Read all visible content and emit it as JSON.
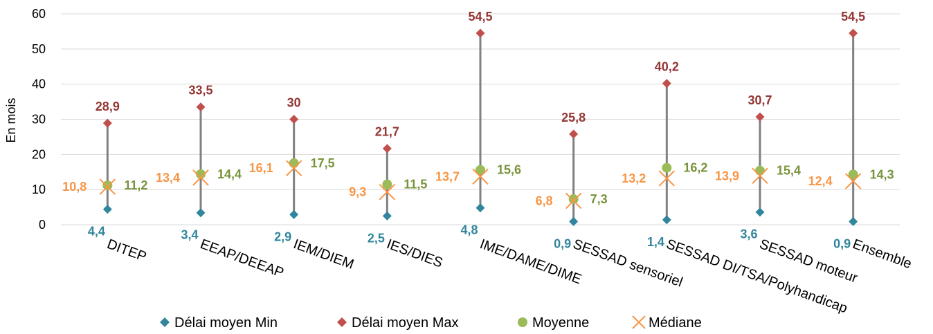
{
  "chart_data": {
    "type": "scatter",
    "title": "",
    "xlabel": "",
    "ylabel": "En mois",
    "ylim": [
      0,
      60
    ],
    "yticks": [
      0,
      10,
      20,
      30,
      40,
      50,
      60
    ],
    "grid": true,
    "legend_position": "bottom",
    "categories": [
      "DITEP",
      "EEAP/DEEAP",
      "IEM/DIEM",
      "IES/DIES",
      "IME/DAME/DIME",
      "SESSAD sensoriel",
      "SESSAD DI/TSA/Polyhandicap",
      "SESSAD moteur",
      "Ensemble"
    ],
    "series": [
      {
        "name": "Délai moyen Min",
        "marker": "diamond",
        "color": "#31859C",
        "label_color": "#31859C",
        "values": [
          4.4,
          3.4,
          2.9,
          2.5,
          4.8,
          0.9,
          1.4,
          3.6,
          0.9
        ],
        "labels": [
          "4,4",
          "3,4",
          "2,9",
          "2,5",
          "4,8",
          "0,9",
          "1,4",
          "3,6",
          "0,9"
        ]
      },
      {
        "name": "Délai moyen Max",
        "marker": "diamond",
        "color": "#C0504D",
        "label_color": "#943634",
        "values": [
          28.9,
          33.5,
          30,
          21.7,
          54.5,
          25.8,
          40.2,
          30.7,
          54.5
        ],
        "labels": [
          "28,9",
          "33,5",
          "30",
          "21,7",
          "54,5",
          "25,8",
          "40,2",
          "30,7",
          "54,5"
        ]
      },
      {
        "name": "Moyenne",
        "marker": "circle",
        "color": "#9BBB59",
        "label_color": "#77933C",
        "values": [
          11.2,
          14.4,
          17.5,
          11.5,
          15.6,
          7.3,
          16.2,
          15.4,
          14.3
        ],
        "labels": [
          "11,2",
          "14,4",
          "17,5",
          "11,5",
          "15,6",
          "7,3",
          "16,2",
          "15,4",
          "14,3"
        ]
      },
      {
        "name": "Médiane",
        "marker": "x",
        "color": "#F79646",
        "label_color": "#F79646",
        "values": [
          10.8,
          13.4,
          16.1,
          9.3,
          13.7,
          6.8,
          13.2,
          13.9,
          12.4
        ],
        "labels": [
          "10,8",
          "13,4",
          "16,1",
          "9,3",
          "13,7",
          "6,8",
          "13,2",
          "13,9",
          "12,4"
        ]
      }
    ],
    "range_line_color": "#808080",
    "grid_color": "#D9D9D9"
  }
}
